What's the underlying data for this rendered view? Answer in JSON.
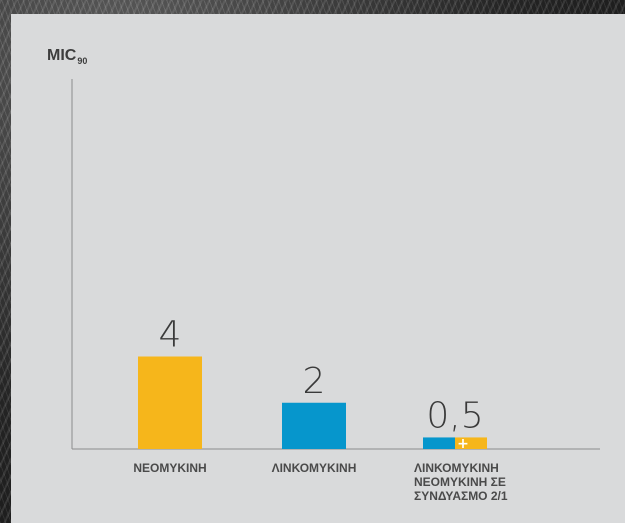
{
  "chart_data": {
    "type": "bar",
    "ylabel_main": "MIC",
    "ylabel_sub": "90",
    "categories": [
      [
        "ΝΕΟΜΥΚΙΝΗ"
      ],
      [
        "ΛΙΝΚΟΜΥΚΙΝΗ"
      ],
      [
        "ΛΙΝΚΟΜΥΚΙΝΗ",
        "ΝΕΟΜΥΚΙΝΗ ΣΕ",
        "ΣΥΝΔΥΑΣΜΟ 2/1"
      ]
    ],
    "values": [
      4,
      2,
      0.5
    ],
    "value_labels": [
      "4",
      "2",
      "0,5"
    ],
    "colors": [
      [
        "#f6b61b"
      ],
      [
        "#0696cc"
      ],
      [
        "#0696cc",
        "#f6b61b"
      ]
    ],
    "combined_marker": "+",
    "ylim": [
      0,
      16
    ],
    "grid": false
  }
}
